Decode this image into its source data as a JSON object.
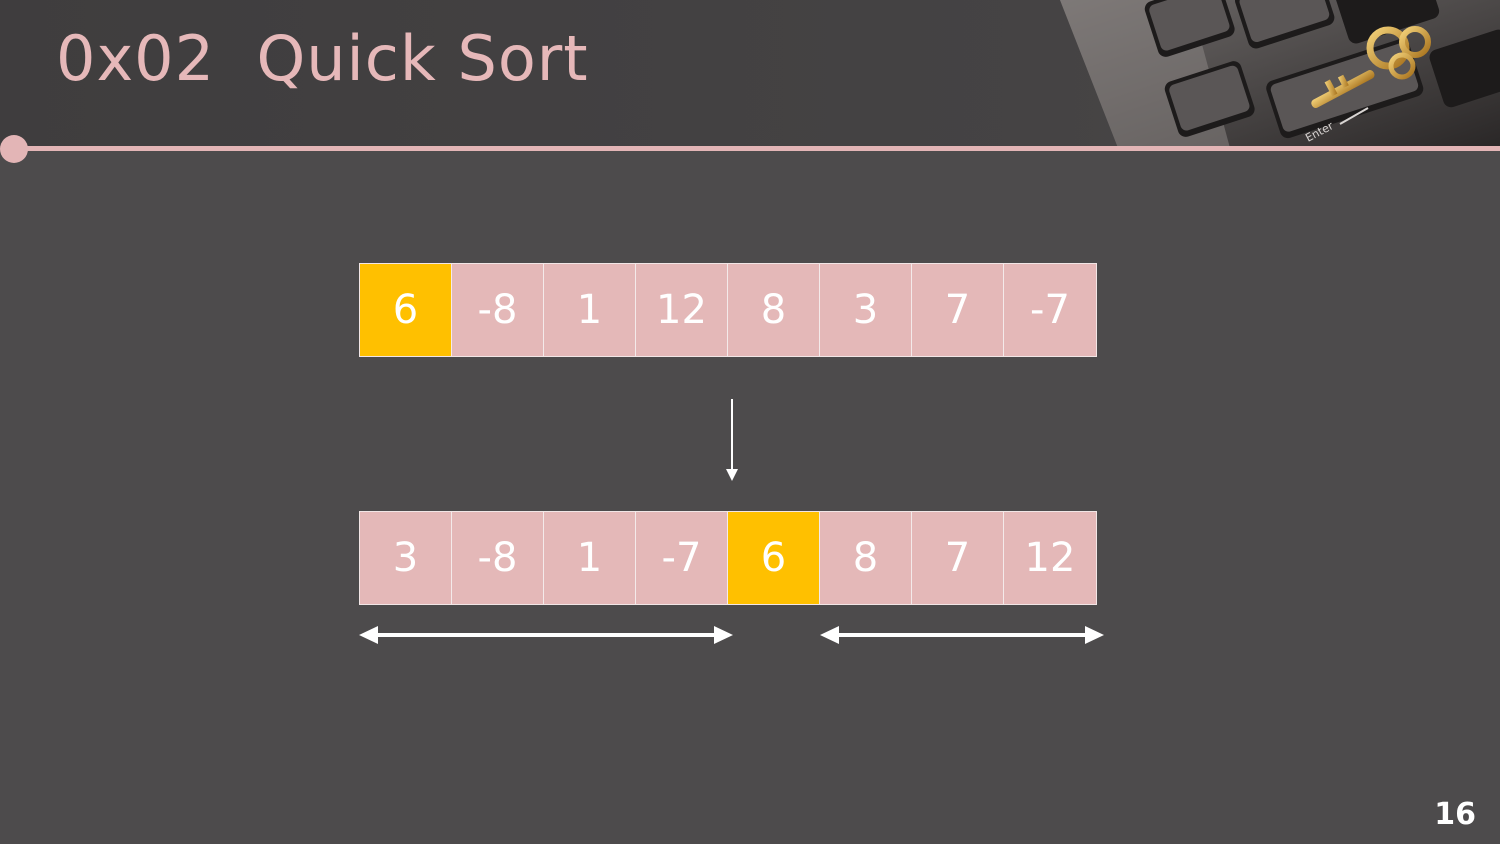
{
  "slide": {
    "title": "0x02  Quick Sort",
    "page_number": "16"
  },
  "diagram": {
    "before": [
      {
        "value": "6",
        "pivot": true
      },
      {
        "value": "-8",
        "pivot": false
      },
      {
        "value": "1",
        "pivot": false
      },
      {
        "value": "12",
        "pivot": false
      },
      {
        "value": "8",
        "pivot": false
      },
      {
        "value": "3",
        "pivot": false
      },
      {
        "value": "7",
        "pivot": false
      },
      {
        "value": "-7",
        "pivot": false
      }
    ],
    "after": [
      {
        "value": "3",
        "pivot": false
      },
      {
        "value": "-8",
        "pivot": false
      },
      {
        "value": "1",
        "pivot": false
      },
      {
        "value": "-7",
        "pivot": false
      },
      {
        "value": "6",
        "pivot": true
      },
      {
        "value": "8",
        "pivot": false
      },
      {
        "value": "7",
        "pivot": false
      },
      {
        "value": "12",
        "pivot": false
      }
    ]
  },
  "colors": {
    "accent": "#e3b5b6",
    "cell": "#e4b8b8",
    "pivot": "#ffc000",
    "background": "#4d4b4c"
  }
}
